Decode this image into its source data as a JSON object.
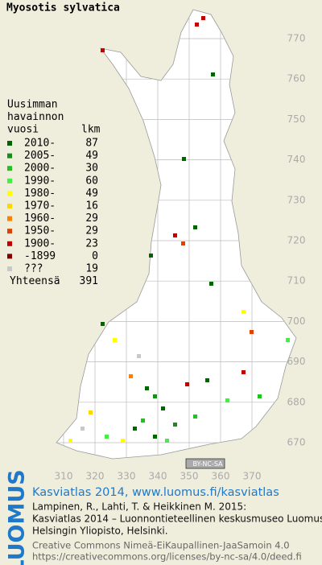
{
  "title": "Myosotis sylvatica",
  "legend": {
    "heading": [
      "Uusimman",
      "havainnon",
      "vuosi"
    ],
    "count_heading": "lkm",
    "rows": [
      {
        "label": "2010-",
        "count": "87",
        "color": "#006400"
      },
      {
        "label": "2005-",
        "count": "49",
        "color": "#1a8c1a"
      },
      {
        "label": "2000-",
        "count": "30",
        "color": "#22c022"
      },
      {
        "label": "1990-",
        "count": "60",
        "color": "#44ee44"
      },
      {
        "label": "1980-",
        "count": "49",
        "color": "#ffff00"
      },
      {
        "label": "1970-",
        "count": "16",
        "color": "#ffd700"
      },
      {
        "label": "1960-",
        "count": "29",
        "color": "#ff8000"
      },
      {
        "label": "1950-",
        "count": "29",
        "color": "#e04000"
      },
      {
        "label": "1900-",
        "count": "23",
        "color": "#c00000"
      },
      {
        "label": "-1899",
        "count": "0",
        "color": "#800000"
      },
      {
        "label": "???",
        "count": "19",
        "color": "#c8c8c8"
      }
    ],
    "total_label": "Yhteensä",
    "total": "391"
  },
  "grid": {
    "northing": [
      770,
      760,
      750,
      740,
      730,
      720,
      710,
      700,
      690,
      680,
      670
    ],
    "easting": [
      310,
      320,
      330,
      340,
      350,
      360,
      370
    ]
  },
  "cc_badge": "BY-NC-SA",
  "footer": {
    "logo": "LUOMUS",
    "headline": "Kasviatlas 2014, www.luomus.fi/kasviatlas",
    "citation": [
      "Lampinen, R., Lahti, T. & Heikkinen M. 2015:",
      "Kasviatlas 2014 – Luonnontieteellinen keskusmuseo Luomus,",
      "Helsingin Yliopisto, Helsinki."
    ],
    "license": [
      "Creative Commons Nimeä-EiKaupallinen-JaaSamoin 4.0",
      "https://creativecommons.org/licenses/by-nc-sa/4.0/deed.fi"
    ]
  }
}
